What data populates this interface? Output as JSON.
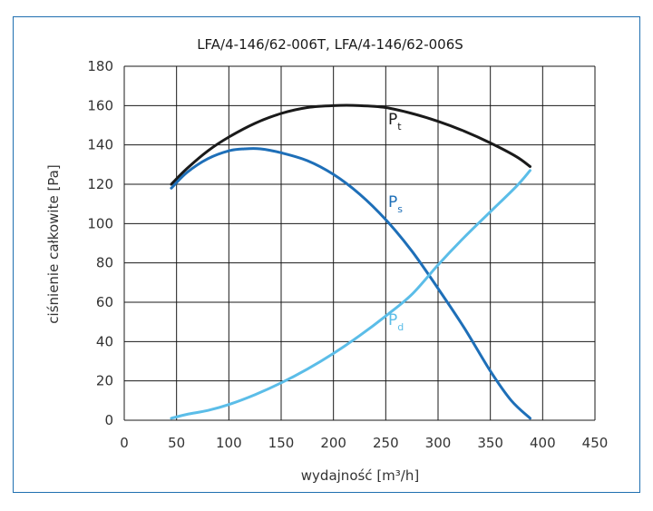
{
  "chart_data": {
    "type": "line",
    "title": "LFA/4-146/62-006T, LFA/4-146/62-006S",
    "xlabel": "wydajność [m³/h]",
    "ylabel": "ciśnienie całkowite [Pa]",
    "xlim": [
      0,
      450
    ],
    "ylim": [
      0,
      180
    ],
    "x_ticks": [
      "0",
      "50",
      "100",
      "150",
      "200",
      "250",
      "300",
      "350",
      "400",
      "450"
    ],
    "y_ticks": [
      "0",
      "20",
      "40",
      "60",
      "80",
      "100",
      "120",
      "140",
      "160",
      "180"
    ],
    "grid": true,
    "series": [
      {
        "name": "Pt",
        "label_main": "P",
        "label_sub": "t",
        "color": "#1a1a1a",
        "x": [
          45,
          60,
          80,
          100,
          125,
          150,
          175,
          200,
          225,
          250,
          275,
          300,
          325,
          350,
          375,
          388
        ],
        "y": [
          120,
          128,
          137,
          144,
          151,
          156,
          159,
          160,
          160,
          159,
          156,
          152,
          147,
          141,
          134,
          129
        ]
      },
      {
        "name": "Ps",
        "label_main": "P",
        "label_sub": "s",
        "color": "#1e6fb8",
        "x": [
          45,
          60,
          80,
          100,
          115,
          130,
          150,
          175,
          200,
          225,
          250,
          275,
          300,
          325,
          350,
          370,
          388
        ],
        "y": [
          118,
          126,
          133,
          137,
          138,
          138,
          136,
          132,
          125,
          115,
          102,
          86,
          67,
          47,
          25,
          10,
          1
        ]
      },
      {
        "name": "Pd",
        "label_main": "P",
        "label_sub": "d",
        "color": "#5bbde8",
        "x": [
          45,
          60,
          80,
          100,
          125,
          150,
          175,
          200,
          225,
          250,
          275,
          300,
          325,
          350,
          375,
          388
        ],
        "y": [
          1,
          3,
          5,
          8,
          13,
          19,
          26,
          34,
          43,
          53,
          64,
          79,
          93,
          106,
          119,
          127
        ]
      }
    ]
  }
}
